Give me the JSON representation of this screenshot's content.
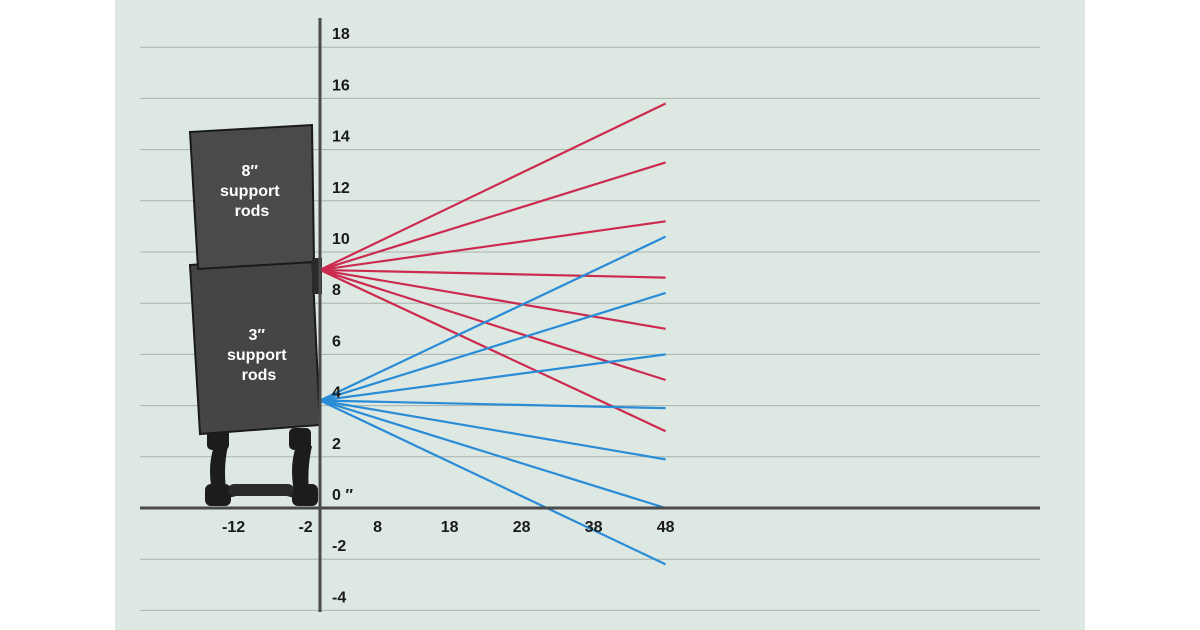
{
  "chart_data": {
    "type": "line",
    "title": "",
    "xlabel": "",
    "ylabel": "",
    "xlim": [
      -12,
      48
    ],
    "ylim": [
      -4,
      18
    ],
    "grid": true,
    "x_ticks": [
      "-12",
      "-2",
      "8",
      "18",
      "28",
      "38",
      "48"
    ],
    "x_tick_values": [
      -12,
      -2,
      8,
      18,
      28,
      38,
      48
    ],
    "y_ticks": [
      "18",
      "16",
      "14",
      "12",
      "10",
      "8",
      "6",
      "4",
      "2",
      "0 ″",
      "-2",
      "-4"
    ],
    "y_tick_values": [
      18,
      16,
      14,
      12,
      10,
      8,
      6,
      4,
      2,
      0,
      -2,
      -4
    ],
    "colors": {
      "high": "#cc2b4f",
      "low": "#2a8bd6",
      "grid": "#a9b3ae",
      "axis": "#4a4a4a",
      "panel": "#dde8e2"
    },
    "series": [
      {
        "group": "8″ support rods",
        "color": "#cc2b4f",
        "x": [
          0,
          48
        ],
        "y": [
          9.3,
          15.8
        ]
      },
      {
        "group": "8″ support rods",
        "color": "#cc2b4f",
        "x": [
          0,
          48
        ],
        "y": [
          9.3,
          13.5
        ]
      },
      {
        "group": "8″ support rods",
        "color": "#cc2b4f",
        "x": [
          0,
          48
        ],
        "y": [
          9.3,
          11.2
        ]
      },
      {
        "group": "8″ support rods",
        "color": "#cc2b4f",
        "x": [
          0,
          48
        ],
        "y": [
          9.3,
          9.0
        ]
      },
      {
        "group": "8″ support rods",
        "color": "#cc2b4f",
        "x": [
          0,
          48
        ],
        "y": [
          9.3,
          7.0
        ]
      },
      {
        "group": "8″ support rods",
        "color": "#cc2b4f",
        "x": [
          0,
          48
        ],
        "y": [
          9.3,
          5.0
        ]
      },
      {
        "group": "8″ support rods",
        "color": "#cc2b4f",
        "x": [
          0,
          48
        ],
        "y": [
          9.3,
          3.0
        ]
      },
      {
        "group": "3″ support rods",
        "color": "#2a8bd6",
        "x": [
          0,
          48
        ],
        "y": [
          4.2,
          10.6
        ]
      },
      {
        "group": "3″ support rods",
        "color": "#2a8bd6",
        "x": [
          0,
          48
        ],
        "y": [
          4.2,
          8.4
        ]
      },
      {
        "group": "3″ support rods",
        "color": "#2a8bd6",
        "x": [
          0,
          48
        ],
        "y": [
          4.2,
          6.0
        ]
      },
      {
        "group": "3″ support rods",
        "color": "#2a8bd6",
        "x": [
          0,
          48
        ],
        "y": [
          4.2,
          3.9
        ]
      },
      {
        "group": "3″ support rods",
        "color": "#2a8bd6",
        "x": [
          0,
          48
        ],
        "y": [
          4.2,
          1.9
        ]
      },
      {
        "group": "3″ support rods",
        "color": "#2a8bd6",
        "x": [
          0,
          48
        ],
        "y": [
          4.2,
          0.0
        ]
      },
      {
        "group": "3″ support rods",
        "color": "#2a8bd6",
        "x": [
          0,
          48
        ],
        "y": [
          4.2,
          -2.2
        ]
      }
    ],
    "annotations": {
      "upper_speaker": [
        "8″",
        "support",
        "rods"
      ],
      "lower_speaker": [
        "3″",
        "support",
        "rods"
      ]
    }
  }
}
